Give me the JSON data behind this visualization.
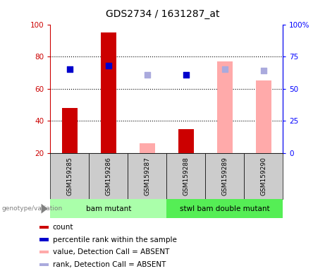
{
  "title": "GDS2734 / 1631287_at",
  "samples": [
    "GSM159285",
    "GSM159286",
    "GSM159287",
    "GSM159288",
    "GSM159289",
    "GSM159290"
  ],
  "groups": [
    {
      "label": "bam mutant",
      "n": 3,
      "color": "#aaffaa"
    },
    {
      "label": "stwl bam double mutant",
      "n": 3,
      "color": "#55ee55"
    }
  ],
  "count_values": [
    48,
    95,
    null,
    35,
    null,
    null
  ],
  "count_color": "#cc0000",
  "rank_values": [
    65,
    68,
    null,
    61,
    null,
    null
  ],
  "rank_color": "#0000cc",
  "absent_value_values": [
    null,
    null,
    26,
    null,
    77,
    65
  ],
  "absent_value_color": "#ffaaaa",
  "absent_rank_values": [
    null,
    null,
    61,
    null,
    65,
    64
  ],
  "absent_rank_color": "#aaaadd",
  "ylim_left": [
    20,
    100
  ],
  "ylim_right": [
    0,
    100
  ],
  "yticks_left": [
    20,
    40,
    60,
    80,
    100
  ],
  "yticks_right": [
    0,
    25,
    50,
    75,
    100
  ],
  "ytick_labels_left": [
    "20",
    "40",
    "60",
    "80",
    "100"
  ],
  "ytick_labels_right": [
    "0",
    "25",
    "50",
    "75",
    "100%"
  ],
  "bar_bottom": 20,
  "bar_width": 0.4,
  "dot_size": 40,
  "label_area_color": "#cccccc",
  "legend_items": [
    {
      "label": "count",
      "color": "#cc0000"
    },
    {
      "label": "percentile rank within the sample",
      "color": "#0000cc"
    },
    {
      "label": "value, Detection Call = ABSENT",
      "color": "#ffaaaa"
    },
    {
      "label": "rank, Detection Call = ABSENT",
      "color": "#aaaadd"
    }
  ]
}
